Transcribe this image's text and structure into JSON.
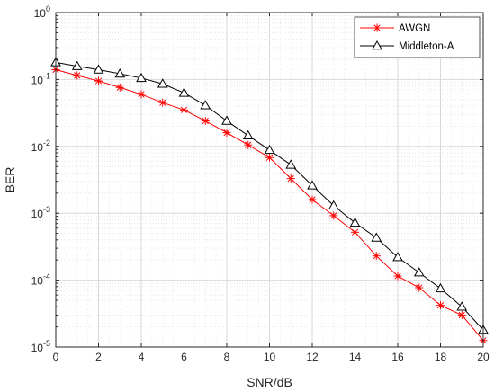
{
  "chart_data": {
    "type": "line",
    "xlabel": "SNR/dB",
    "ylabel": "BER",
    "y_scale": "log",
    "xlim": [
      0,
      20
    ],
    "ylim": [
      1e-05,
      1
    ],
    "grid": true,
    "minor_grid": true,
    "legend_position": "top-right",
    "x_ticks": [
      "0",
      "2",
      "4",
      "6",
      "8",
      "10",
      "12",
      "14",
      "16",
      "18",
      "20"
    ],
    "y_ticks": [
      {
        "base": "10",
        "exp": "0"
      },
      {
        "base": "10",
        "exp": "-1"
      },
      {
        "base": "10",
        "exp": "-2"
      },
      {
        "base": "10",
        "exp": "-3"
      },
      {
        "base": "10",
        "exp": "-4"
      },
      {
        "base": "10",
        "exp": "-5"
      }
    ],
    "x": [
      0,
      1,
      2,
      3,
      4,
      5,
      6,
      7,
      8,
      9,
      10,
      11,
      12,
      13,
      14,
      15,
      16,
      17,
      18,
      19,
      20
    ],
    "series": [
      {
        "name": "AWGN",
        "color": "#ff0000",
        "marker": "asterisk",
        "values": [
          0.14,
          0.115,
          0.095,
          0.076,
          0.06,
          0.045,
          0.035,
          0.024,
          0.016,
          0.0105,
          0.0068,
          0.0033,
          0.0016,
          0.00092,
          0.00052,
          0.00023,
          0.000115,
          7.7e-05,
          4.2e-05,
          3e-05,
          1.25e-05
        ]
      },
      {
        "name": "Middleton-A",
        "color": "#000000",
        "marker": "triangle",
        "values": [
          0.18,
          0.158,
          0.14,
          0.122,
          0.105,
          0.086,
          0.063,
          0.041,
          0.024,
          0.0145,
          0.0088,
          0.0053,
          0.0026,
          0.0013,
          0.00072,
          0.00043,
          0.00022,
          0.00013,
          7.5e-05,
          4e-05,
          1.8e-05
        ]
      }
    ]
  }
}
